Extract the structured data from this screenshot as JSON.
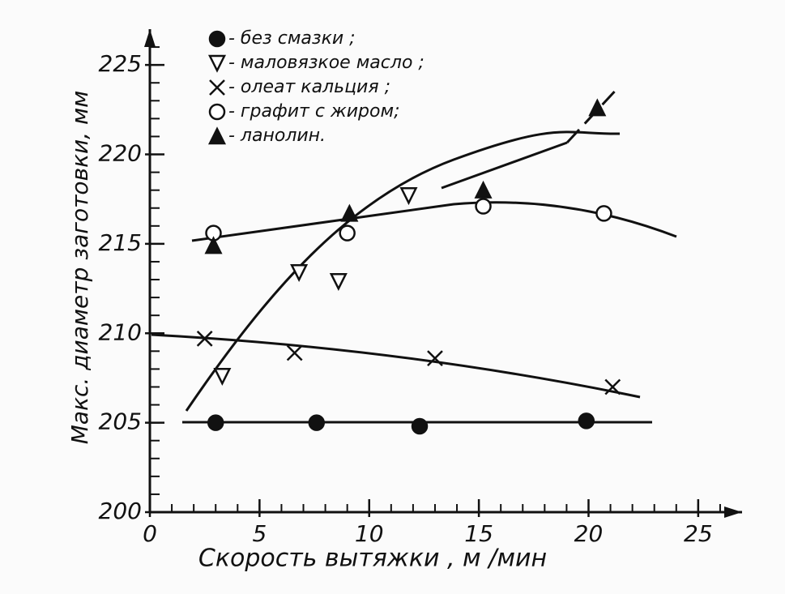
{
  "chart_data": {
    "type": "scatter",
    "xlabel": "Скорость  вытяжки , м /мин",
    "ylabel": "Макс. диаметр заготовки, мм",
    "xlim": [
      0,
      27
    ],
    "xticks": [
      0,
      5,
      10,
      15,
      20,
      25
    ],
    "ylim": [
      200,
      227
    ],
    "yticks": [
      200,
      205,
      210,
      215,
      220,
      225
    ],
    "series": [
      {
        "name": "- без смазки ;",
        "marker": "filled-circle",
        "color": "#111",
        "x": [
          3.0,
          7.6,
          12.3,
          19.9
        ],
        "values": [
          205.0,
          205.0,
          204.8,
          205.1
        ]
      },
      {
        "name": "- маловязкое масло ;",
        "marker": "open-triangle-down",
        "color": "#111",
        "x": [
          3.3,
          6.8,
          8.6,
          11.8
        ],
        "values": [
          207.6,
          213.4,
          212.9,
          217.7
        ]
      },
      {
        "name": "- олеат кальция ;",
        "marker": "cross",
        "color": "#111",
        "x": [
          2.5,
          6.6,
          13.0,
          21.1
        ],
        "values": [
          209.7,
          208.9,
          208.6,
          207.0
        ]
      },
      {
        "name": "- графит с жиром;",
        "marker": "open-circle",
        "color": "#111",
        "x": [
          2.9,
          9.0,
          15.2,
          20.7
        ],
        "values": [
          215.6,
          215.6,
          217.1,
          216.7
        ]
      },
      {
        "name": "- ланолин.",
        "marker": "filled-triangle-up",
        "color": "#111",
        "x": [
          2.9,
          9.1,
          15.2,
          20.4
        ],
        "values": [
          214.9,
          216.7,
          218.0,
          222.6
        ]
      }
    ]
  }
}
